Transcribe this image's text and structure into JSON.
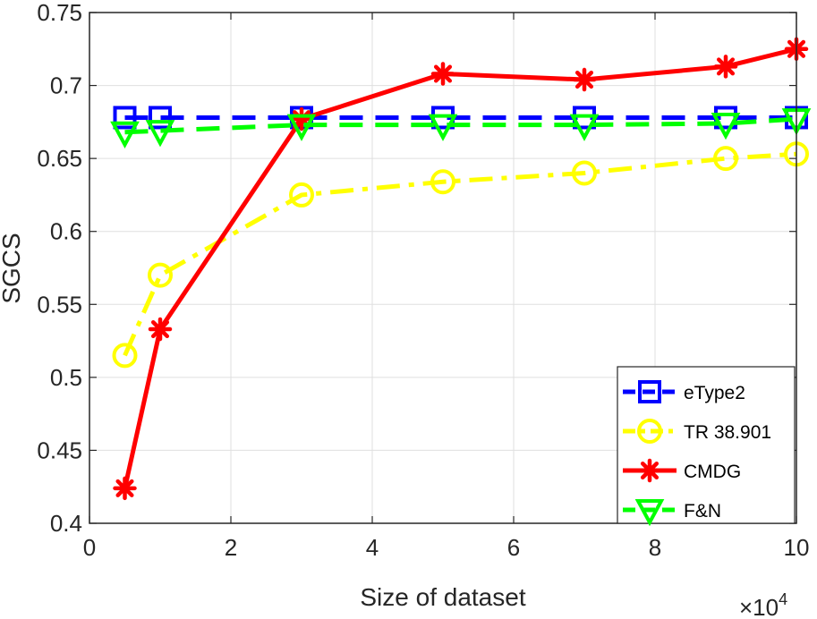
{
  "chart_data": {
    "type": "line",
    "title": "",
    "xlabel": "Size of dataset",
    "ylabel": "SGCS",
    "x_exponent": {
      "base": "×10",
      "power": "4"
    },
    "xlim": [
      0,
      10
    ],
    "ylim": [
      0.4,
      0.75
    ],
    "xticks": [
      0,
      2,
      4,
      6,
      8,
      10
    ],
    "xtick_labels": [
      "0",
      "2",
      "4",
      "6",
      "8",
      "10"
    ],
    "yticks": [
      0.4,
      0.45,
      0.5,
      0.55,
      0.6,
      0.65,
      0.7,
      0.75
    ],
    "ytick_labels": [
      "0.4",
      "0.45",
      "0.5",
      "0.55",
      "0.6",
      "0.65",
      "0.7",
      "0.75"
    ],
    "grid": true,
    "legend_position": "bottom-right",
    "x": [
      0.5,
      1,
      3,
      5,
      7,
      9,
      10
    ],
    "series": [
      {
        "name": "eType2",
        "values": [
          0.678,
          0.678,
          0.678,
          0.678,
          0.678,
          0.678,
          0.678
        ],
        "color": "#0000ff",
        "dash": "dashed",
        "marker": "square"
      },
      {
        "name": "TR 38.901",
        "values": [
          0.515,
          0.57,
          0.625,
          0.634,
          0.64,
          0.65,
          0.653
        ],
        "color": "#ffff00",
        "dash": "dashdot",
        "marker": "circle"
      },
      {
        "name": "CMDG",
        "values": [
          0.424,
          0.533,
          0.677,
          0.708,
          0.704,
          0.713,
          0.725
        ],
        "color": "#ff0000",
        "dash": "solid",
        "marker": "star"
      },
      {
        "name": "F&N",
        "values": [
          0.668,
          0.669,
          0.673,
          0.673,
          0.673,
          0.674,
          0.677
        ],
        "color": "#00ff00",
        "dash": "dashed",
        "marker": "triangle-down"
      }
    ]
  }
}
